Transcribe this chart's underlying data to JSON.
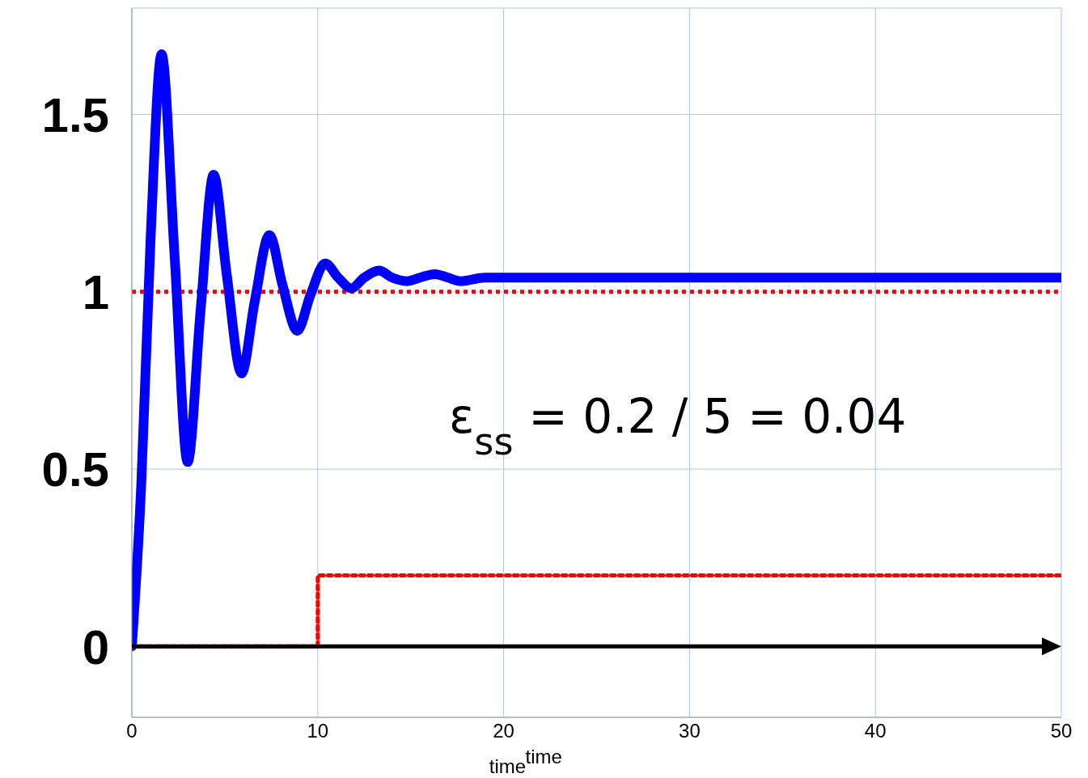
{
  "chart_data": {
    "type": "line",
    "xlabel": "time",
    "xlim": [
      0,
      50
    ],
    "xticks": [
      0,
      10,
      20,
      30,
      40,
      50
    ],
    "ylim": [
      -0.2,
      1.8
    ],
    "yticks": [
      0,
      0.5,
      1,
      1.5
    ],
    "grid": true,
    "marker": "none",
    "series": [
      {
        "color": "#0000ff",
        "line_style": "solid",
        "x": [
          0,
          0.5,
          1.0,
          1.6,
          2.3,
          3.0,
          3.7,
          4.4,
          5.1,
          5.9,
          6.6,
          7.4,
          8.1,
          8.9,
          9.6,
          10.4,
          11.1,
          11.8,
          12.5,
          13.3,
          14.0,
          14.8,
          15.5,
          16.3,
          17.0,
          17.7,
          19,
          22,
          25,
          30,
          40,
          50
        ],
        "values": [
          0,
          0.45,
          1.14,
          1.67,
          1.1,
          0.52,
          0.95,
          1.33,
          1.05,
          0.77,
          0.97,
          1.16,
          1.02,
          0.89,
          0.99,
          1.08,
          1.04,
          1.01,
          1.04,
          1.06,
          1.04,
          1.03,
          1.04,
          1.05,
          1.04,
          1.03,
          1.04,
          1.04,
          1.04,
          1.04,
          1.04,
          1.04
        ]
      },
      {
        "type": "step",
        "color": "#ff0000",
        "line_style": "dotted",
        "x": [
          0,
          10,
          50
        ],
        "values": [
          0,
          0.2,
          0.2
        ]
      }
    ],
    "ref_lines": [
      {
        "axis": "y",
        "value": 1,
        "color": "#ff0000",
        "line_style": "dotted"
      }
    ],
    "annotations": [
      "ε$_{ss}$ = 0.2 / 5 = 0.04",
      "time"
    ]
  }
}
